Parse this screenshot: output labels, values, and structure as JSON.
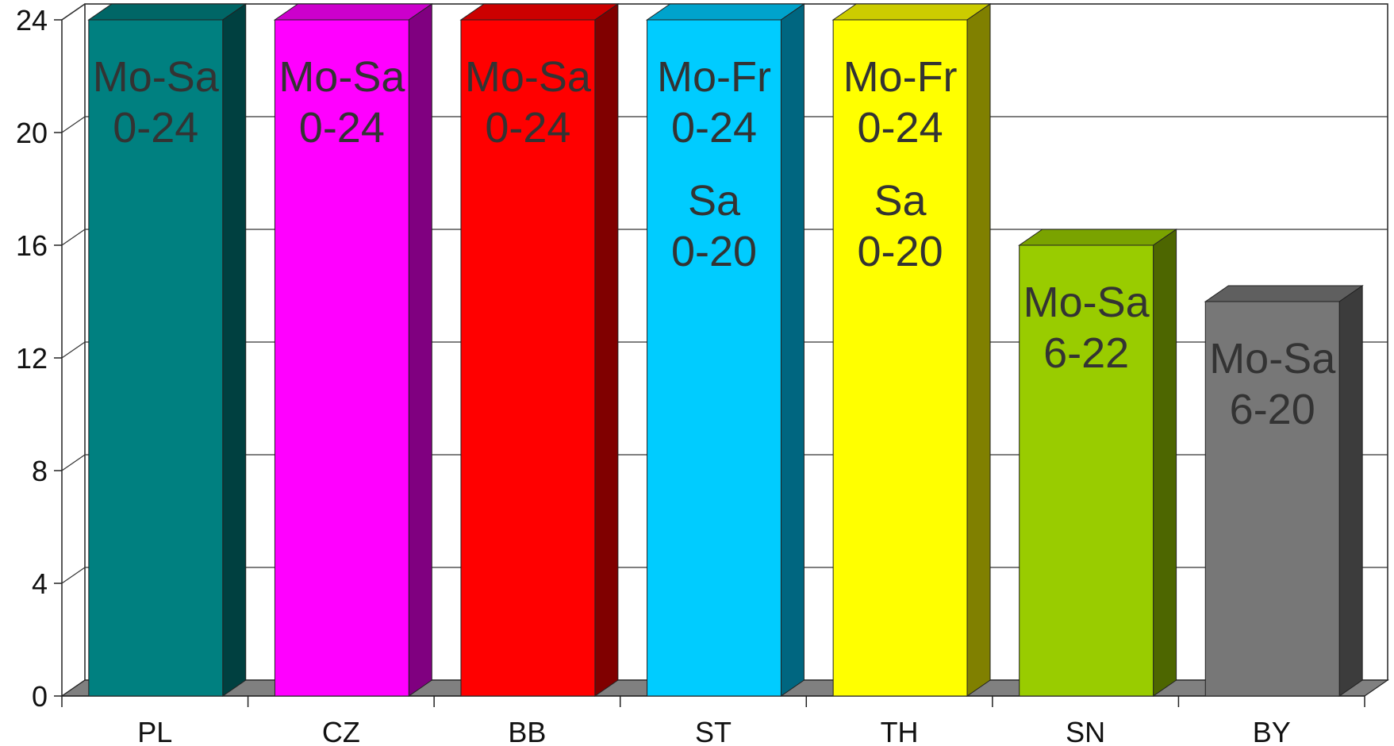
{
  "chart_data": {
    "type": "bar",
    "title": "",
    "xlabel": "",
    "ylabel": "",
    "ylim": [
      0,
      24
    ],
    "yticks": [
      0,
      4,
      8,
      12,
      16,
      20,
      24
    ],
    "grid": true,
    "three_d": true,
    "categories": [
      "PL",
      "CZ",
      "BB",
      "ST",
      "TH",
      "SN",
      "BY"
    ],
    "values": [
      24,
      24,
      24,
      24,
      24,
      16,
      14
    ],
    "colors": [
      "#008080",
      "#FF00FF",
      "#FF0000",
      "#00CCFF",
      "#FFFF00",
      "#99CC00",
      "#777777"
    ],
    "side_colors": [
      "#004040",
      "#800080",
      "#800000",
      "#006680",
      "#808000",
      "#4D6600",
      "#3C3C3C"
    ],
    "top_colors": [
      "#006666",
      "#CC00CC",
      "#CC0000",
      "#00A3CC",
      "#CCCC00",
      "#7AA300",
      "#5F5F5F"
    ],
    "bar_labels": [
      [
        "Mo-Sa",
        "0-24"
      ],
      [
        "Mo-Sa",
        "0-24"
      ],
      [
        "Mo-Sa",
        "0-24"
      ],
      [
        "Mo-Fr",
        "0-24",
        "Sa",
        "0-20"
      ],
      [
        "Mo-Fr",
        "0-24",
        "Sa",
        "0-20"
      ],
      [
        "Mo-Sa",
        "6-22"
      ],
      [
        "Mo-Sa",
        "6-20"
      ]
    ]
  }
}
